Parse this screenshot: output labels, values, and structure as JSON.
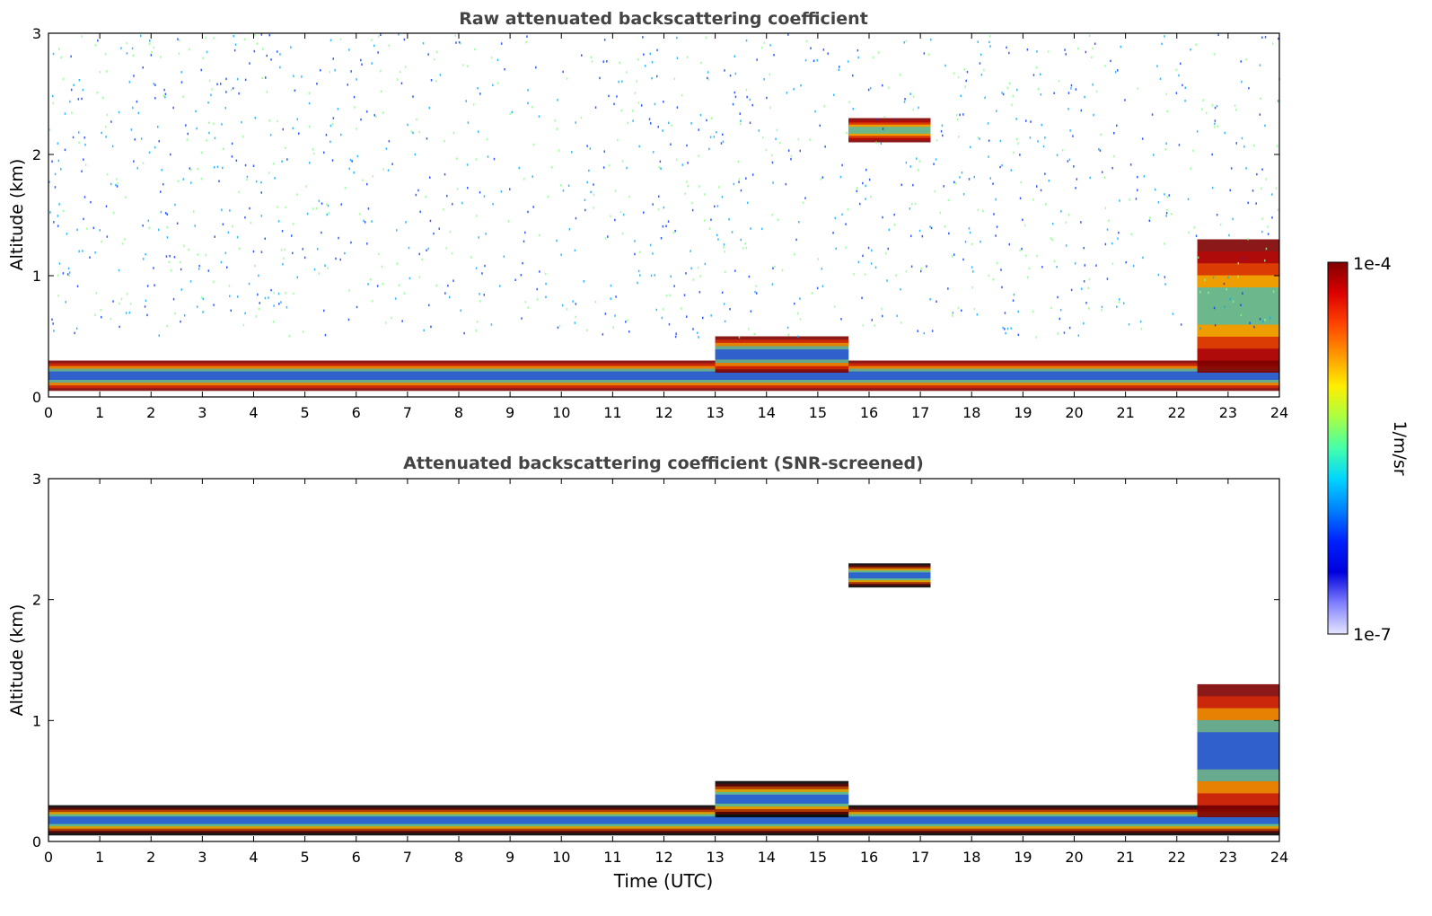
{
  "chart_data": [
    {
      "type": "heatmap",
      "title": "Raw attenuated backscattering coefficient",
      "xlabel": "",
      "ylabel": "Altitude (km)",
      "xlim": [
        0,
        24
      ],
      "ylim": [
        0,
        3
      ],
      "xticks": [
        "0",
        "1",
        "2",
        "3",
        "4",
        "5",
        "6",
        "7",
        "8",
        "9",
        "10",
        "11",
        "12",
        "13",
        "14",
        "15",
        "16",
        "17",
        "18",
        "19",
        "20",
        "21",
        "22",
        "23",
        "24"
      ],
      "yticks": [
        "0",
        "1",
        "2",
        "3"
      ],
      "layers": [
        {
          "name": "boundary-layer-aerosol",
          "t0": 0,
          "t1": 24,
          "alt_km": [
            0.05,
            0.3
          ],
          "level": "high"
        },
        {
          "name": "elevated-layer",
          "t0": 13,
          "t1": 15.6,
          "alt_km": [
            0.2,
            0.5
          ],
          "level": "high"
        },
        {
          "name": "cloud",
          "t0": 15.6,
          "t1": 17.2,
          "alt_km": [
            2.1,
            2.3
          ],
          "level": "very-high"
        },
        {
          "name": "cloud",
          "t0": 22.4,
          "t1": 24,
          "alt_km": [
            0.2,
            1.3
          ],
          "level": "very-high"
        },
        {
          "name": "noise-high-altitude",
          "t0": 0,
          "t1": 24,
          "alt_km": [
            0.5,
            3.0
          ],
          "level": "low"
        }
      ]
    },
    {
      "type": "heatmap",
      "title": "Attenuated backscattering coefficient (SNR-screened)",
      "xlabel": "Time (UTC)",
      "ylabel": "Altitude (km)",
      "xlim": [
        0,
        24
      ],
      "ylim": [
        0,
        3
      ],
      "xticks": [
        "0",
        "1",
        "2",
        "3",
        "4",
        "5",
        "6",
        "7",
        "8",
        "9",
        "10",
        "11",
        "12",
        "13",
        "14",
        "15",
        "16",
        "17",
        "18",
        "19",
        "20",
        "21",
        "22",
        "23",
        "24"
      ],
      "yticks": [
        "0",
        "1",
        "2",
        "3"
      ],
      "layers": [
        {
          "name": "boundary-layer-aerosol",
          "t0": 0,
          "t1": 24,
          "alt_km": [
            0.05,
            0.3
          ],
          "level": "saturated"
        },
        {
          "name": "elevated-layer",
          "t0": 13,
          "t1": 15.6,
          "alt_km": [
            0.2,
            0.5
          ],
          "level": "saturated"
        },
        {
          "name": "cloud",
          "t0": 15.6,
          "t1": 17.2,
          "alt_km": [
            2.1,
            2.3
          ],
          "level": "saturated"
        },
        {
          "name": "cloud",
          "t0": 22.4,
          "t1": 24,
          "alt_km": [
            0.2,
            1.3
          ],
          "level": "high"
        }
      ]
    }
  ],
  "colorbar": {
    "label": "1/m/sr",
    "max_label": "1e-4",
    "min_label": "1e-7",
    "colors": [
      "#800000",
      "#dd0000",
      "#ff4400",
      "#ff9900",
      "#ffee00",
      "#aaff44",
      "#44ffaa",
      "#00d4ff",
      "#0080ff",
      "#0020ff",
      "#0000dd",
      "#7f7fff",
      "#e6e6ff"
    ]
  },
  "background_color": "#ffffff"
}
